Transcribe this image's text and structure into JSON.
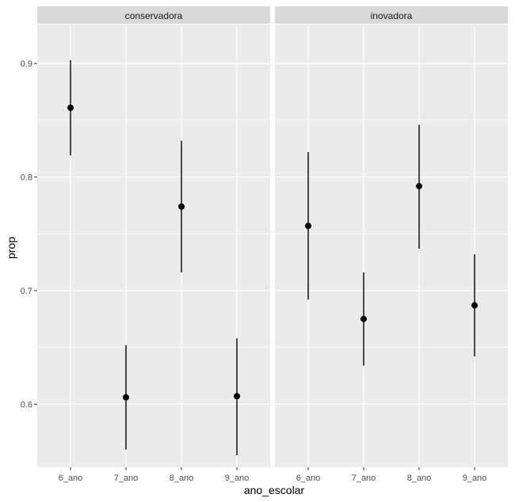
{
  "chart_data": {
    "type": "pointrange",
    "facets": [
      {
        "label": "conservadora",
        "categories": [
          "6_ano",
          "7_ano",
          "8_ano",
          "9_ano"
        ],
        "points": [
          {
            "x": "6_ano",
            "y": 0.861,
            "ymin": 0.819,
            "ymax": 0.903
          },
          {
            "x": "7_ano",
            "y": 0.606,
            "ymin": 0.56,
            "ymax": 0.652
          },
          {
            "x": "8_ano",
            "y": 0.774,
            "ymin": 0.716,
            "ymax": 0.832
          },
          {
            "x": "9_ano",
            "y": 0.607,
            "ymin": 0.555,
            "ymax": 0.658
          }
        ]
      },
      {
        "label": "inovadora",
        "categories": [
          "6_ano",
          "7_ano",
          "8_ano",
          "9_ano"
        ],
        "points": [
          {
            "x": "6_ano",
            "y": 0.757,
            "ymin": 0.692,
            "ymax": 0.822
          },
          {
            "x": "7_ano",
            "y": 0.675,
            "ymin": 0.634,
            "ymax": 0.716
          },
          {
            "x": "8_ano",
            "y": 0.792,
            "ymin": 0.737,
            "ymax": 0.846
          },
          {
            "x": "9_ano",
            "y": 0.687,
            "ymin": 0.642,
            "ymax": 0.732
          }
        ]
      }
    ],
    "xlabel": "ano_escolar",
    "ylabel": "prop",
    "yticks": [
      0.6,
      0.7,
      0.8,
      0.9
    ],
    "ytick_labels": [
      "0.6",
      "0.7",
      "0.8",
      "0.9"
    ],
    "ylim": [
      0.5445,
      0.9343
    ],
    "grid": true,
    "colors": {
      "panel_bg": "#ebebeb",
      "strip_bg": "#d9d9d9",
      "grid_major": "#ffffff",
      "point": "#000000"
    }
  }
}
